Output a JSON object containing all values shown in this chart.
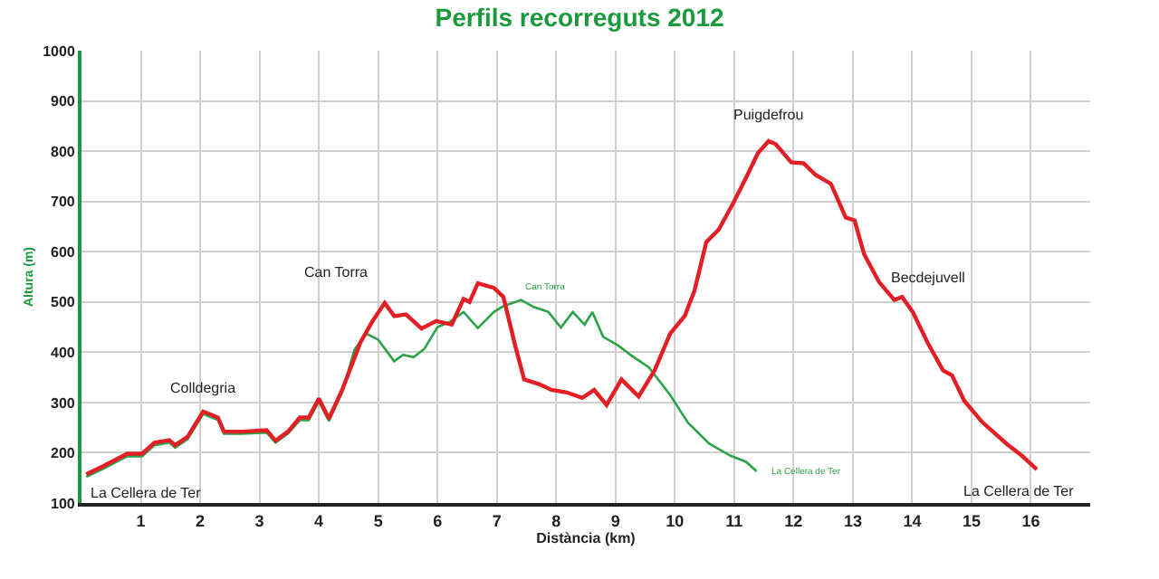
{
  "chart_data": {
    "type": "line",
    "title": "Perfils recorreguts 2012",
    "xlabel": "Distància (km)",
    "ylabel": "Altura (m)",
    "xlim": [
      0,
      17
    ],
    "xticks": [
      1,
      2,
      3,
      4,
      5,
      6,
      7,
      8,
      9,
      10,
      11,
      12,
      13,
      14,
      15,
      16
    ],
    "ylim": [
      100,
      1000
    ],
    "yticks": [
      100,
      200,
      300,
      400,
      500,
      600,
      700,
      800,
      900,
      1000
    ],
    "grid": true,
    "marker": "none",
    "line_style": "solid",
    "series": [
      {
        "color": "#2ca24a",
        "x": [
          0.08,
          0.36,
          0.77,
          1.02,
          1.23,
          1.48,
          1.58,
          1.79,
          2.05,
          2.2,
          2.3,
          2.4,
          2.71,
          3.12,
          3.27,
          3.48,
          3.68,
          3.83,
          4.0,
          4.17,
          4.4,
          4.6,
          4.8,
          5.0,
          5.27,
          5.42,
          5.6,
          5.78,
          6.0,
          6.2,
          6.44,
          6.68,
          6.95,
          7.1,
          7.41,
          7.62,
          7.87,
          8.08,
          8.28,
          8.48,
          8.61,
          8.79,
          9.05,
          9.25,
          9.56,
          9.92,
          10.22,
          10.58,
          10.94,
          11.2,
          11.38
        ],
        "values": [
          152,
          168,
          193,
          193,
          215,
          220,
          210,
          227,
          277,
          270,
          265,
          238,
          238,
          240,
          220,
          238,
          265,
          265,
          302,
          263,
          322,
          405,
          437,
          425,
          382,
          395,
          390,
          407,
          450,
          460,
          480,
          448,
          480,
          491,
          504,
          490,
          480,
          449,
          480,
          455,
          480,
          431,
          413,
          395,
          370,
          315,
          260,
          218,
          194,
          182,
          163
        ]
      },
      {
        "color": "#e31e24",
        "x": [
          0.08,
          0.36,
          0.77,
          1.02,
          1.23,
          1.48,
          1.58,
          1.79,
          2.05,
          2.2,
          2.3,
          2.4,
          2.71,
          3.12,
          3.27,
          3.48,
          3.68,
          3.83,
          4.0,
          4.17,
          4.4,
          4.7,
          4.9,
          5.11,
          5.27,
          5.47,
          5.73,
          5.98,
          6.24,
          6.44,
          6.54,
          6.68,
          6.95,
          7.11,
          7.31,
          7.46,
          7.72,
          7.92,
          8.18,
          8.44,
          8.64,
          8.85,
          9.1,
          9.39,
          9.66,
          9.92,
          10.17,
          10.33,
          10.53,
          10.74,
          10.99,
          11.2,
          11.4,
          11.58,
          11.7,
          11.96,
          12.17,
          12.37,
          12.63,
          12.88,
          13.03,
          13.19,
          13.44,
          13.7,
          13.83,
          14.01,
          14.26,
          14.52,
          14.67,
          14.88,
          15.18,
          15.59,
          15.85,
          16.1
        ],
        "values": [
          157,
          173,
          198,
          198,
          220,
          225,
          215,
          232,
          282,
          275,
          270,
          242,
          242,
          245,
          224,
          242,
          270,
          270,
          308,
          268,
          327,
          419,
          461,
          498,
          472,
          475,
          447,
          462,
          455,
          506,
          500,
          537,
          528,
          510,
          413,
          346,
          336,
          325,
          320,
          309,
          325,
          295,
          346,
          312,
          364,
          437,
          473,
          522,
          619,
          644,
          698,
          747,
          796,
          820,
          814,
          778,
          776,
          753,
          735,
          668,
          662,
          595,
          540,
          504,
          510,
          480,
          419,
          364,
          354,
          303,
          261,
          218,
          194,
          167
        ]
      }
    ],
    "annotations": [
      {
        "text": "La Cellera de Ter",
        "x": 0.08,
        "y": 157
      },
      {
        "text": "Colldegria",
        "x": 2.05,
        "y": 282
      },
      {
        "text": "Can Torra",
        "x": 5.11,
        "y": 498
      },
      {
        "text": "Can Torra",
        "x": 7.41,
        "y": 504
      },
      {
        "text": "La Cellera de Ter",
        "x": 11.38,
        "y": 163
      },
      {
        "text": "Puigdefrou",
        "x": 11.58,
        "y": 820
      },
      {
        "text": "Becdejuvell",
        "x": 13.7,
        "y": 504
      },
      {
        "text": "La Cellera de Ter",
        "x": 16.1,
        "y": 167
      }
    ]
  }
}
